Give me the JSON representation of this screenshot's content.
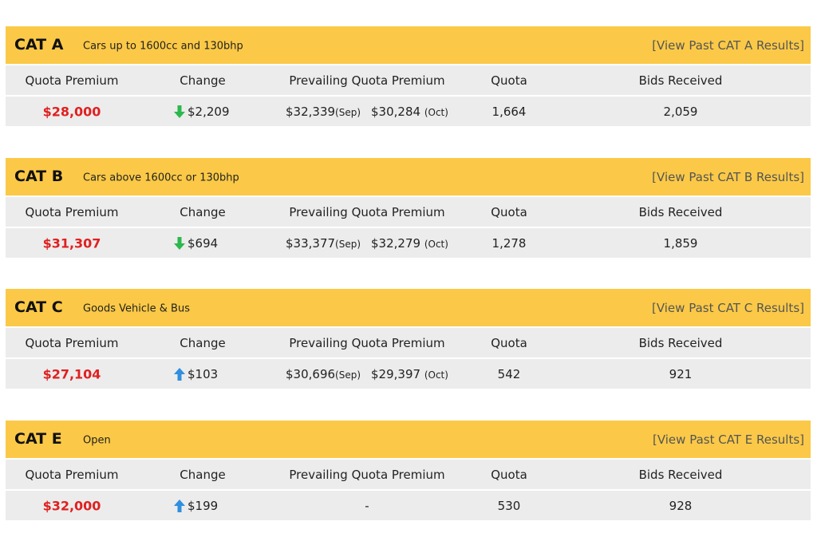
{
  "columns": [
    "Quota Premium",
    "Change",
    "Prevailing Quota Premium",
    "Quota",
    "Bids Received"
  ],
  "sections": [
    {
      "name": "CAT A",
      "description": "Cars up to 1600cc and 130bhp",
      "link": "[View Past CAT A Results]",
      "row": {
        "premium": "$28,000",
        "direction": "down",
        "change": "$2,209",
        "prevailing": [
          {
            "value": "$32,339",
            "month": "(Sep)"
          },
          {
            "value": "$30,284",
            "month": "(Oct)"
          }
        ],
        "quota": "1,664",
        "bids": "2,059"
      }
    },
    {
      "name": "CAT B",
      "description": "Cars above 1600cc or 130bhp",
      "link": "[View Past CAT B Results]",
      "row": {
        "premium": "$31,307",
        "direction": "down",
        "change": "$694",
        "prevailing": [
          {
            "value": "$33,377",
            "month": "(Sep)"
          },
          {
            "value": "$32,279",
            "month": "(Oct)"
          }
        ],
        "quota": "1,278",
        "bids": "1,859"
      }
    },
    {
      "name": "CAT C",
      "description": "Goods Vehicle & Bus",
      "link": "[View Past CAT C Results]",
      "row": {
        "premium": "$27,104",
        "direction": "up",
        "change": "$103",
        "prevailing": [
          {
            "value": "$30,696",
            "month": "(Sep)"
          },
          {
            "value": "$29,397",
            "month": "(Oct)"
          }
        ],
        "quota": "542",
        "bids": "921"
      }
    },
    {
      "name": "CAT E",
      "description": "Open",
      "link": "[View Past CAT E Results]",
      "row": {
        "premium": "$32,000",
        "direction": "up",
        "change": "$199",
        "prevailing": "-",
        "quota": "530",
        "bids": "928"
      }
    }
  ]
}
